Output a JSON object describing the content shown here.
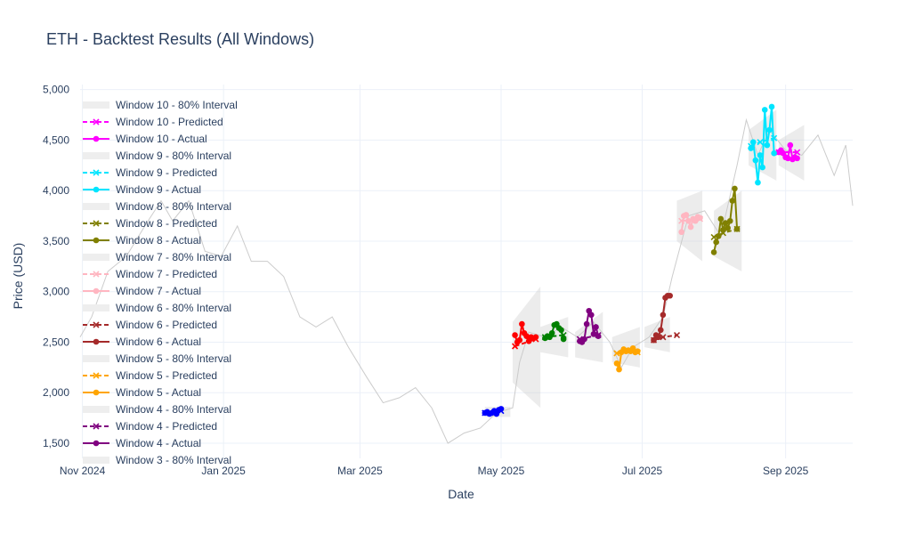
{
  "chart_data": {
    "type": "line",
    "title": "ETH - Backtest Results (All Windows)",
    "xlabel": "Date",
    "ylabel": "Price (USD)",
    "xlim": [
      "2024-10-31",
      "2025-09-30"
    ],
    "ylim": [
      1350,
      5050
    ],
    "grid": true,
    "legend_placement": "left",
    "x_ticks": [
      {
        "date": "2024-11-01",
        "label": "Nov 2024"
      },
      {
        "date": "2025-01-01",
        "label": "Jan 2025"
      },
      {
        "date": "2025-03-01",
        "label": "Mar 2025"
      },
      {
        "date": "2025-05-01",
        "label": "May 2025"
      },
      {
        "date": "2025-07-01",
        "label": "Jul 2025"
      },
      {
        "date": "2025-09-01",
        "label": "Sep 2025"
      }
    ],
    "y_ticks": [
      {
        "value": 1500,
        "label": "1,500"
      },
      {
        "value": 2000,
        "label": "2,000"
      },
      {
        "value": 2500,
        "label": "2,500"
      },
      {
        "value": 3000,
        "label": "3,000"
      },
      {
        "value": 3500,
        "label": "3,500"
      },
      {
        "value": 4000,
        "label": "4,000"
      },
      {
        "value": 4500,
        "label": "4,500"
      },
      {
        "value": 5000,
        "label": "5,000"
      }
    ],
    "price_history": {
      "color": "#cccccc",
      "x": [
        "2024-10-31",
        "2024-11-05",
        "2024-11-12",
        "2024-11-20",
        "2024-11-28",
        "2024-12-05",
        "2024-12-10",
        "2024-12-17",
        "2024-12-24",
        "2024-12-31",
        "2025-01-07",
        "2025-01-13",
        "2025-01-20",
        "2025-01-27",
        "2025-02-03",
        "2025-02-10",
        "2025-02-17",
        "2025-02-24",
        "2025-03-04",
        "2025-03-11",
        "2025-03-18",
        "2025-03-25",
        "2025-04-01",
        "2025-04-08",
        "2025-04-15",
        "2025-04-22",
        "2025-04-29",
        "2025-05-06",
        "2025-05-09",
        "2025-05-13",
        "2025-05-20",
        "2025-05-27",
        "2025-06-03",
        "2025-06-10",
        "2025-06-17",
        "2025-06-22",
        "2025-06-27",
        "2025-07-04",
        "2025-07-10",
        "2025-07-14",
        "2025-07-21",
        "2025-07-28",
        "2025-08-04",
        "2025-08-11",
        "2025-08-15",
        "2025-08-20",
        "2025-08-25",
        "2025-09-01",
        "2025-09-08",
        "2025-09-15",
        "2025-09-22",
        "2025-09-27",
        "2025-09-30"
      ],
      "values": [
        2550,
        2750,
        3200,
        3350,
        3650,
        3900,
        3700,
        3900,
        3400,
        3350,
        3650,
        3300,
        3300,
        3150,
        2750,
        2650,
        2750,
        2450,
        2150,
        1900,
        1950,
        2050,
        1850,
        1500,
        1600,
        1650,
        1800,
        1850,
        2300,
        2600,
        2550,
        2650,
        2550,
        2700,
        2500,
        2250,
        2450,
        2550,
        2750,
        3150,
        3750,
        3800,
        3550,
        4250,
        4700,
        4350,
        4600,
        4400,
        4350,
        4550,
        4150,
        4450,
        3850
      ]
    },
    "windows": [
      {
        "name_interval": "Window 10 - 80% Interval",
        "name_predicted": "Window 10 - Predicted",
        "name_actual": "Window 10 - Actual",
        "color": "#ff00ff",
        "interval": {
          "x": [
            "2025-08-29",
            "2025-09-09"
          ],
          "lower_start": 4250,
          "upper_start": 4500,
          "lower_end": 4100,
          "upper_end": 4650
        },
        "actual": {
          "x": [
            "2025-08-29",
            "2025-08-30",
            "2025-08-31",
            "2025-09-01",
            "2025-09-02",
            "2025-09-03",
            "2025-09-04",
            "2025-09-05",
            "2025-09-06"
          ],
          "values": [
            4380,
            4400,
            4370,
            4330,
            4320,
            4450,
            4310,
            4330,
            4320
          ]
        },
        "predicted": {
          "x": [
            "2025-08-29",
            "2025-09-06"
          ],
          "values": [
            4380,
            4380
          ]
        }
      },
      {
        "name_interval": "Window 9 - 80% Interval",
        "name_predicted": "Window 9 - Predicted",
        "name_actual": "Window 9 - Actual",
        "color": "#00e5ff",
        "interval": {
          "x": [
            "2025-08-16",
            "2025-08-28"
          ],
          "lower_start": 4250,
          "upper_start": 4600,
          "lower_end": 4100,
          "upper_end": 4800
        },
        "actual": {
          "x": [
            "2025-08-17",
            "2025-08-18",
            "2025-08-19",
            "2025-08-20",
            "2025-08-21",
            "2025-08-22",
            "2025-08-23",
            "2025-08-24",
            "2025-08-25",
            "2025-08-26",
            "2025-08-27"
          ],
          "values": [
            4420,
            4480,
            4300,
            4080,
            4350,
            4230,
            4800,
            4450,
            4600,
            4830,
            4370
          ]
        },
        "predicted": {
          "x": [
            "2025-08-17",
            "2025-08-21",
            "2025-08-27"
          ],
          "values": [
            4440,
            4480,
            4520
          ]
        }
      },
      {
        "name_interval": "Window 8 - 80% Interval",
        "name_predicted": "Window 8 - Predicted",
        "name_actual": "Window 8 - Actual",
        "color": "#808000",
        "interval": {
          "x": [
            "2025-08-01",
            "2025-08-13"
          ],
          "lower_start": 3350,
          "upper_start": 3800,
          "lower_end": 3200,
          "upper_end": 4000
        },
        "actual": {
          "x": [
            "2025-08-01",
            "2025-08-02",
            "2025-08-03",
            "2025-08-04",
            "2025-08-05",
            "2025-08-06",
            "2025-08-07",
            "2025-08-08",
            "2025-08-09",
            "2025-08-10",
            "2025-08-11"
          ],
          "values": [
            3390,
            3490,
            3550,
            3720,
            3610,
            3680,
            3630,
            3700,
            3900,
            4020,
            3620
          ]
        },
        "predicted": {
          "x": [
            "2025-08-01",
            "2025-08-05",
            "2025-08-11"
          ],
          "values": [
            3540,
            3580,
            3620
          ]
        }
      },
      {
        "name_interval": "Window 7 - 80% Interval",
        "name_predicted": "Window 7 - Predicted",
        "name_actual": "Window 7 - Actual",
        "color": "#ffb6c1",
        "interval": {
          "x": [
            "2025-07-16",
            "2025-07-27"
          ],
          "lower_start": 3500,
          "upper_start": 3900,
          "lower_end": 3300,
          "upper_end": 4000
        },
        "actual": {
          "x": [
            "2025-07-18",
            "2025-07-19",
            "2025-07-20",
            "2025-07-21",
            "2025-07-22",
            "2025-07-23",
            "2025-07-24",
            "2025-07-25",
            "2025-07-26"
          ],
          "values": [
            3590,
            3750,
            3760,
            3700,
            3640,
            3720,
            3700,
            3740,
            3730
          ]
        },
        "predicted": {
          "x": [
            "2025-07-18",
            "2025-07-26"
          ],
          "values": [
            3700,
            3720
          ]
        }
      },
      {
        "name_interval": "Window 6 - 80% Interval",
        "name_predicted": "Window 6 - Predicted",
        "name_actual": "Window 6 - Actual",
        "color": "#a52a2a",
        "interval": {
          "x": [
            "2025-07-02",
            "2025-07-13"
          ],
          "lower_start": 2450,
          "upper_start": 2650,
          "lower_end": 2400,
          "upper_end": 2750
        },
        "actual": {
          "x": [
            "2025-07-06",
            "2025-07-07",
            "2025-07-08",
            "2025-07-09",
            "2025-07-10",
            "2025-07-11",
            "2025-07-12",
            "2025-07-13"
          ],
          "values": [
            2520,
            2570,
            2550,
            2620,
            2770,
            2940,
            2960,
            2960
          ]
        },
        "predicted": {
          "x": [
            "2025-07-06",
            "2025-07-10",
            "2025-07-16"
          ],
          "values": [
            2520,
            2550,
            2570
          ]
        }
      },
      {
        "name_interval": "Window 5 - 80% Interval",
        "name_predicted": "Window 5 - Predicted",
        "name_actual": "Window 5 - Actual",
        "color": "#ffa500",
        "interval": {
          "x": [
            "2025-06-18",
            "2025-06-30"
          ],
          "lower_start": 2300,
          "upper_start": 2550,
          "lower_end": 2250,
          "upper_end": 2650
        },
        "actual": {
          "x": [
            "2025-06-20",
            "2025-06-21",
            "2025-06-22",
            "2025-06-23",
            "2025-06-24",
            "2025-06-25",
            "2025-06-26",
            "2025-06-27",
            "2025-06-28",
            "2025-06-29"
          ],
          "values": [
            2290,
            2230,
            2400,
            2430,
            2410,
            2420,
            2410,
            2440,
            2400,
            2410
          ]
        },
        "predicted": {
          "x": [
            "2025-06-20",
            "2025-06-29"
          ],
          "values": [
            2390,
            2400
          ]
        }
      },
      {
        "name_interval": "Window 4 - 80% Interval",
        "name_predicted": "Window 4 - Predicted",
        "name_actual": "Window 4 - Actual",
        "color": "#800080",
        "interval": {
          "x": [
            "2025-06-02",
            "2025-06-14"
          ],
          "lower_start": 2350,
          "upper_start": 2600,
          "lower_end": 2300,
          "upper_end": 2800
        },
        "actual": {
          "x": [
            "2025-06-04",
            "2025-06-05",
            "2025-06-06",
            "2025-06-07",
            "2025-06-08",
            "2025-06-09",
            "2025-06-10",
            "2025-06-11",
            "2025-06-12"
          ],
          "values": [
            2510,
            2500,
            2530,
            2680,
            2810,
            2770,
            2580,
            2650,
            2560
          ]
        },
        "predicted": {
          "x": [
            "2025-06-04",
            "2025-06-12"
          ],
          "values": [
            2530,
            2570
          ]
        }
      },
      {
        "name_interval": "Window 3 - 80% Interval",
        "color": "#008000",
        "interval": {
          "x": [
            "2025-05-18",
            "2025-05-30"
          ],
          "lower_start": 2400,
          "upper_start": 2650,
          "lower_end": 2350,
          "upper_end": 2750
        },
        "actual": {
          "x": [
            "2025-05-20",
            "2025-05-21",
            "2025-05-22",
            "2025-05-23",
            "2025-05-24",
            "2025-05-25",
            "2025-05-26",
            "2025-05-27",
            "2025-05-28"
          ],
          "values": [
            2540,
            2560,
            2550,
            2590,
            2670,
            2680,
            2640,
            2620,
            2530
          ]
        },
        "predicted": {
          "x": [
            "2025-05-20",
            "2025-05-28"
          ],
          "values": [
            2550,
            2570
          ]
        }
      },
      {
        "color": "#ff0000",
        "interval": {
          "x": [
            "2025-05-06",
            "2025-05-18"
          ],
          "lower_start": 2100,
          "upper_start": 2700,
          "lower_end": 1850,
          "upper_end": 3050
        },
        "actual": {
          "x": [
            "2025-05-07",
            "2025-05-08",
            "2025-05-09",
            "2025-05-10",
            "2025-05-11",
            "2025-05-12",
            "2025-05-13",
            "2025-05-14",
            "2025-05-15",
            "2025-05-16"
          ],
          "values": [
            2570,
            2500,
            2520,
            2680,
            2590,
            2560,
            2510,
            2550,
            2540,
            2550
          ]
        },
        "predicted": {
          "x": [
            "2025-05-07",
            "2025-05-16"
          ],
          "values": [
            2460,
            2530
          ]
        }
      },
      {
        "color": "#0000ff",
        "interval": {
          "x": [
            "2025-04-24",
            "2025-05-05"
          ],
          "lower_start": 1760,
          "upper_start": 1860,
          "lower_end": 1760,
          "upper_end": 1860
        },
        "actual": {
          "x": [
            "2025-04-24",
            "2025-04-25",
            "2025-04-26",
            "2025-04-27",
            "2025-04-28",
            "2025-04-29",
            "2025-04-30",
            "2025-05-01"
          ],
          "values": [
            1800,
            1810,
            1790,
            1800,
            1820,
            1790,
            1830,
            1840
          ]
        },
        "predicted": {
          "x": [
            "2025-04-24",
            "2025-05-01"
          ],
          "values": [
            1800,
            1820
          ]
        }
      }
    ]
  }
}
